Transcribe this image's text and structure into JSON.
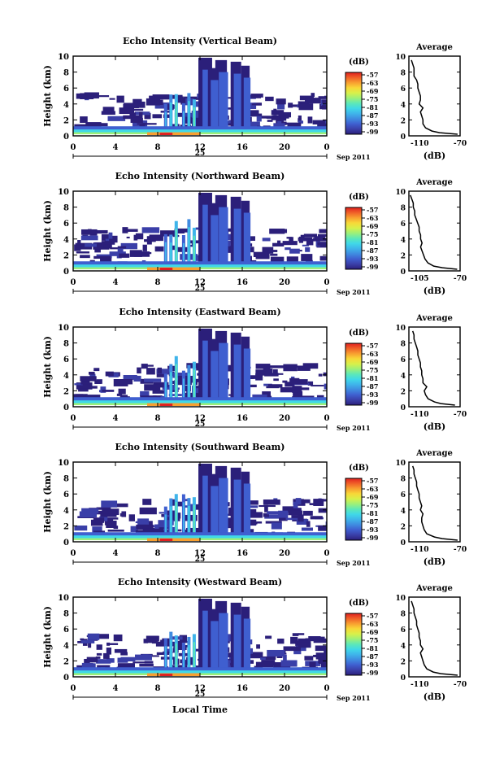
{
  "global": {
    "x_axis_label": "Local Time",
    "date_suffix": "Sep 2011",
    "day_label": "25",
    "colorbar_title": "(dB)",
    "colorbar_ticks": [
      "-57",
      "-63",
      "-69",
      "-75",
      "-81",
      "-87",
      "-93",
      "-99"
    ],
    "colormap": [
      "#2b1f7a",
      "#3a3fa8",
      "#3f5fd0",
      "#3f8be0",
      "#3fb4ea",
      "#40d8e8",
      "#5de8b8",
      "#9cf07a",
      "#d8f04a",
      "#f8d838",
      "#f8a030",
      "#f06028",
      "#e02020"
    ],
    "avg_title": "Average",
    "avg_xlabel": "(dB)"
  },
  "chart_data": [
    {
      "type": "heatmap",
      "title": "Echo Intensity (Vertical Beam)",
      "ylabel": "Height (km)",
      "xlabel": "Local Time",
      "x_ticks": [
        "0",
        "4",
        "8",
        "12",
        "16",
        "20",
        "0"
      ],
      "y_ticks": [
        "0",
        "2",
        "4",
        "6",
        "8",
        "10"
      ],
      "xlim": [
        0,
        24
      ],
      "ylim": [
        0,
        10
      ],
      "colorbar_range": [
        -99,
        -57
      ],
      "average_profile": {
        "title": "Average",
        "xlabel": "(dB)",
        "x_ticks": [
          "-110",
          "-70"
        ],
        "y_ticks": [
          "0",
          "2",
          "4",
          "6",
          "8",
          "10"
        ],
        "xlim": [
          -110,
          -70
        ],
        "height": [
          0.2,
          0.4,
          0.6,
          1.0,
          1.5,
          2.0,
          2.5,
          3.0,
          3.5,
          4.0,
          4.5,
          5.0,
          5.5,
          6.0,
          6.5,
          7.0,
          7.5,
          8.0,
          8.5,
          9.0,
          9.5
        ],
        "value": [
          -72,
          -86,
          -92,
          -97,
          -99,
          -99,
          -100,
          -101,
          -99,
          -102,
          -101,
          -101,
          -102,
          -103,
          -103,
          -104,
          -106,
          -106,
          -106,
          -107,
          -108
        ]
      }
    },
    {
      "type": "heatmap",
      "title": "Echo Intensity (Northward Beam)",
      "ylabel": "Height (km)",
      "xlabel": "Local Time",
      "x_ticks": [
        "0",
        "4",
        "8",
        "12",
        "16",
        "20",
        "0"
      ],
      "y_ticks": [
        "0",
        "2",
        "4",
        "6",
        "8",
        "10"
      ],
      "xlim": [
        0,
        24
      ],
      "ylim": [
        0,
        10
      ],
      "colorbar_range": [
        -99,
        -57
      ],
      "average_profile": {
        "title": "Average",
        "xlabel": "(dB)",
        "x_ticks": [
          "-105",
          "-70"
        ],
        "y_ticks": [
          "0",
          "2",
          "4",
          "6",
          "8",
          "10"
        ],
        "xlim": [
          -105,
          -70
        ],
        "height": [
          0.2,
          0.4,
          0.6,
          1.0,
          1.5,
          2.0,
          2.5,
          3.0,
          3.5,
          4.0,
          4.5,
          5.0,
          5.5,
          6.0,
          6.5,
          7.0,
          7.5,
          8.0,
          8.5,
          9.0,
          9.5
        ],
        "value": [
          -72,
          -82,
          -88,
          -92,
          -94,
          -95,
          -96,
          -97,
          -96,
          -97,
          -97,
          -98,
          -98,
          -99,
          -100,
          -101,
          -101,
          -102,
          -102,
          -103,
          -104
        ]
      }
    },
    {
      "type": "heatmap",
      "title": "Echo Intensity (Eastward Beam)",
      "ylabel": "Height (km)",
      "xlabel": "Local Time",
      "x_ticks": [
        "0",
        "4",
        "8",
        "12",
        "16",
        "20",
        "0"
      ],
      "y_ticks": [
        "0",
        "2",
        "4",
        "6",
        "8",
        "10"
      ],
      "xlim": [
        0,
        24
      ],
      "ylim": [
        0,
        10
      ],
      "colorbar_range": [
        -99,
        -57
      ],
      "average_profile": {
        "title": "Average",
        "xlabel": "(dB)",
        "x_ticks": [
          "-110",
          "-70"
        ],
        "y_ticks": [
          "0",
          "2",
          "4",
          "6",
          "8",
          "10"
        ],
        "xlim": [
          -110,
          -70
        ],
        "height": [
          0.2,
          0.4,
          0.6,
          1.0,
          1.5,
          2.0,
          2.5,
          3.0,
          3.5,
          4.0,
          4.5,
          5.0,
          5.5,
          6.0,
          6.5,
          7.0,
          7.5,
          8.0,
          8.5,
          9.0,
          9.5
        ],
        "value": [
          -74,
          -85,
          -90,
          -95,
          -97,
          -98,
          -96,
          -99,
          -99,
          -100,
          -100,
          -101,
          -101,
          -102,
          -103,
          -103,
          -104,
          -105,
          -106,
          -106,
          -107
        ]
      }
    },
    {
      "type": "heatmap",
      "title": "Echo Intensity (Southward Beam)",
      "ylabel": "Height (km)",
      "xlabel": "Local Time",
      "x_ticks": [
        "0",
        "4",
        "8",
        "12",
        "16",
        "20",
        "0"
      ],
      "y_ticks": [
        "0",
        "2",
        "4",
        "6",
        "8",
        "10"
      ],
      "xlim": [
        0,
        24
      ],
      "ylim": [
        0,
        10
      ],
      "colorbar_range": [
        -99,
        -57
      ],
      "average_profile": {
        "title": "Average",
        "xlabel": "(dB)",
        "x_ticks": [
          "-110",
          "-70"
        ],
        "y_ticks": [
          "0",
          "2",
          "4",
          "6",
          "8",
          "10"
        ],
        "xlim": [
          -110,
          -70
        ],
        "height": [
          0.2,
          0.4,
          0.6,
          1.0,
          1.5,
          2.0,
          2.5,
          3.0,
          3.5,
          4.0,
          4.5,
          5.0,
          5.5,
          6.0,
          6.5,
          7.0,
          7.5,
          8.0,
          8.5,
          9.0,
          9.5
        ],
        "value": [
          -72,
          -84,
          -90,
          -96,
          -98,
          -99,
          -100,
          -100,
          -99,
          -101,
          -100,
          -101,
          -102,
          -102,
          -103,
          -104,
          -104,
          -105,
          -106,
          -106,
          -107
        ]
      }
    },
    {
      "type": "heatmap",
      "title": "Echo Intensity (Westward Beam)",
      "ylabel": "Height (km)",
      "xlabel": "Local Time",
      "x_ticks": [
        "0",
        "4",
        "8",
        "12",
        "16",
        "20",
        "0"
      ],
      "y_ticks": [
        "0",
        "2",
        "4",
        "6",
        "8",
        "10"
      ],
      "xlim": [
        0,
        24
      ],
      "ylim": [
        0,
        10
      ],
      "colorbar_range": [
        -99,
        -57
      ],
      "average_profile": {
        "title": "Average",
        "xlabel": "(dB)",
        "x_ticks": [
          "-110",
          "-70"
        ],
        "y_ticks": [
          "0",
          "2",
          "4",
          "6",
          "8",
          "10"
        ],
        "xlim": [
          -110,
          -70
        ],
        "height": [
          0.2,
          0.4,
          0.6,
          1.0,
          1.5,
          2.0,
          2.5,
          3.0,
          3.5,
          4.0,
          4.5,
          5.0,
          5.5,
          6.0,
          6.5,
          7.0,
          7.5,
          8.0,
          8.5,
          9.0,
          9.5
        ],
        "value": [
          -72,
          -85,
          -91,
          -96,
          -98,
          -99,
          -100,
          -101,
          -99,
          -101,
          -101,
          -102,
          -102,
          -103,
          -104,
          -104,
          -105,
          -106,
          -106,
          -107,
          -108
        ]
      }
    }
  ]
}
